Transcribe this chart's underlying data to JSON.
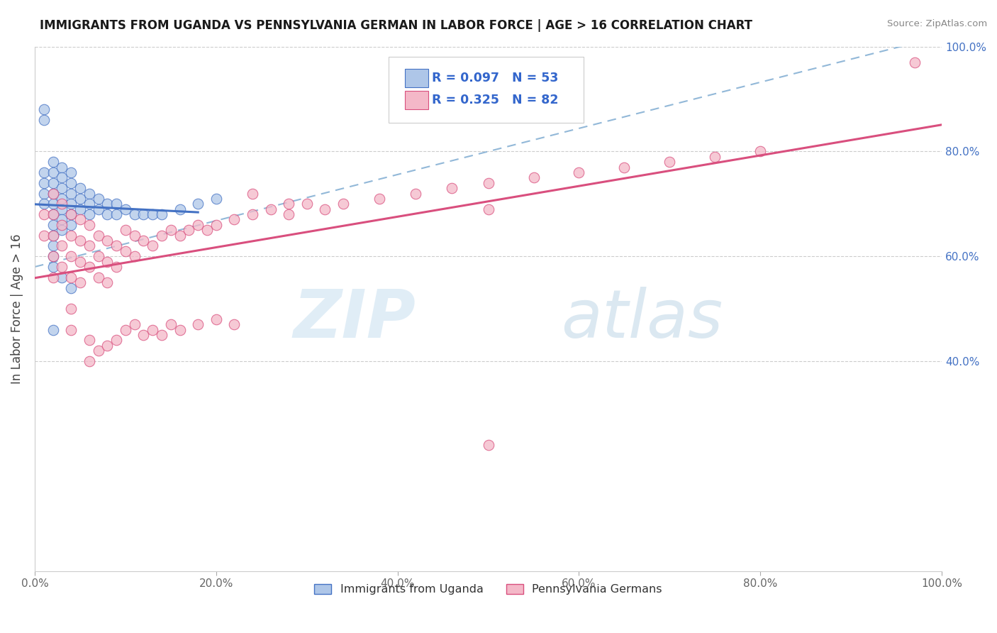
{
  "title": "IMMIGRANTS FROM UGANDA VS PENNSYLVANIA GERMAN IN LABOR FORCE | AGE > 16 CORRELATION CHART",
  "source": "Source: ZipAtlas.com",
  "ylabel": "In Labor Force | Age > 16",
  "xlim": [
    0.0,
    1.0
  ],
  "ylim": [
    0.0,
    1.0
  ],
  "xtick_vals": [
    0.0,
    0.2,
    0.4,
    0.6,
    0.8,
    1.0
  ],
  "xtick_labels": [
    "0.0%",
    "20.0%",
    "40.0%",
    "60.0%",
    "80.0%",
    "100.0%"
  ],
  "ytick_vals": [
    0.4,
    0.6,
    0.8,
    1.0
  ],
  "ytick_labels": [
    "40.0%",
    "60.0%",
    "80.0%",
    "100.0%"
  ],
  "r_uganda": 0.097,
  "n_uganda": 53,
  "r_penn": 0.325,
  "n_penn": 82,
  "legend_labels": [
    "Immigrants from Uganda",
    "Pennsylvania Germans"
  ],
  "uganda_color": "#aec6e8",
  "penn_color": "#f4b8c8",
  "uganda_line_color": "#4472c4",
  "penn_line_color": "#d94f7e",
  "trend_dash_color": "#92b8d8",
  "watermark_zip": "ZIP",
  "watermark_atlas": "atlas",
  "uganda_scatter_x": [
    0.01,
    0.01,
    0.01,
    0.01,
    0.02,
    0.02,
    0.02,
    0.02,
    0.02,
    0.02,
    0.02,
    0.02,
    0.02,
    0.02,
    0.03,
    0.03,
    0.03,
    0.03,
    0.03,
    0.03,
    0.03,
    0.04,
    0.04,
    0.04,
    0.04,
    0.04,
    0.04,
    0.05,
    0.05,
    0.05,
    0.06,
    0.06,
    0.06,
    0.07,
    0.07,
    0.08,
    0.08,
    0.09,
    0.09,
    0.1,
    0.11,
    0.12,
    0.13,
    0.14,
    0.16,
    0.18,
    0.2,
    0.01,
    0.01,
    0.02,
    0.03,
    0.04,
    0.02
  ],
  "uganda_scatter_y": [
    0.76,
    0.74,
    0.72,
    0.7,
    0.78,
    0.76,
    0.74,
    0.72,
    0.7,
    0.68,
    0.66,
    0.64,
    0.62,
    0.6,
    0.77,
    0.75,
    0.73,
    0.71,
    0.69,
    0.67,
    0.65,
    0.76,
    0.74,
    0.72,
    0.7,
    0.68,
    0.66,
    0.73,
    0.71,
    0.69,
    0.72,
    0.7,
    0.68,
    0.71,
    0.69,
    0.7,
    0.68,
    0.7,
    0.68,
    0.69,
    0.68,
    0.68,
    0.68,
    0.68,
    0.69,
    0.7,
    0.71,
    0.88,
    0.86,
    0.58,
    0.56,
    0.54,
    0.46
  ],
  "penn_scatter_x": [
    0.01,
    0.01,
    0.02,
    0.02,
    0.02,
    0.02,
    0.02,
    0.03,
    0.03,
    0.03,
    0.03,
    0.04,
    0.04,
    0.04,
    0.04,
    0.05,
    0.05,
    0.05,
    0.05,
    0.06,
    0.06,
    0.06,
    0.07,
    0.07,
    0.07,
    0.08,
    0.08,
    0.08,
    0.09,
    0.09,
    0.1,
    0.1,
    0.11,
    0.11,
    0.12,
    0.13,
    0.14,
    0.15,
    0.16,
    0.17,
    0.18,
    0.19,
    0.2,
    0.22,
    0.24,
    0.26,
    0.28,
    0.3,
    0.32,
    0.34,
    0.38,
    0.42,
    0.46,
    0.5,
    0.55,
    0.6,
    0.65,
    0.7,
    0.75,
    0.8,
    0.24,
    0.28,
    0.5,
    0.04,
    0.04,
    0.06,
    0.06,
    0.07,
    0.08,
    0.09,
    0.1,
    0.11,
    0.12,
    0.13,
    0.14,
    0.15,
    0.16,
    0.18,
    0.2,
    0.22,
    0.97,
    0.5
  ],
  "penn_scatter_y": [
    0.68,
    0.64,
    0.72,
    0.68,
    0.64,
    0.6,
    0.56,
    0.7,
    0.66,
    0.62,
    0.58,
    0.68,
    0.64,
    0.6,
    0.56,
    0.67,
    0.63,
    0.59,
    0.55,
    0.66,
    0.62,
    0.58,
    0.64,
    0.6,
    0.56,
    0.63,
    0.59,
    0.55,
    0.62,
    0.58,
    0.65,
    0.61,
    0.64,
    0.6,
    0.63,
    0.62,
    0.64,
    0.65,
    0.64,
    0.65,
    0.66,
    0.65,
    0.66,
    0.67,
    0.68,
    0.69,
    0.68,
    0.7,
    0.69,
    0.7,
    0.71,
    0.72,
    0.73,
    0.74,
    0.75,
    0.76,
    0.77,
    0.78,
    0.79,
    0.8,
    0.72,
    0.7,
    0.69,
    0.5,
    0.46,
    0.44,
    0.4,
    0.42,
    0.43,
    0.44,
    0.46,
    0.47,
    0.45,
    0.46,
    0.45,
    0.47,
    0.46,
    0.47,
    0.48,
    0.47,
    0.97,
    0.24
  ]
}
